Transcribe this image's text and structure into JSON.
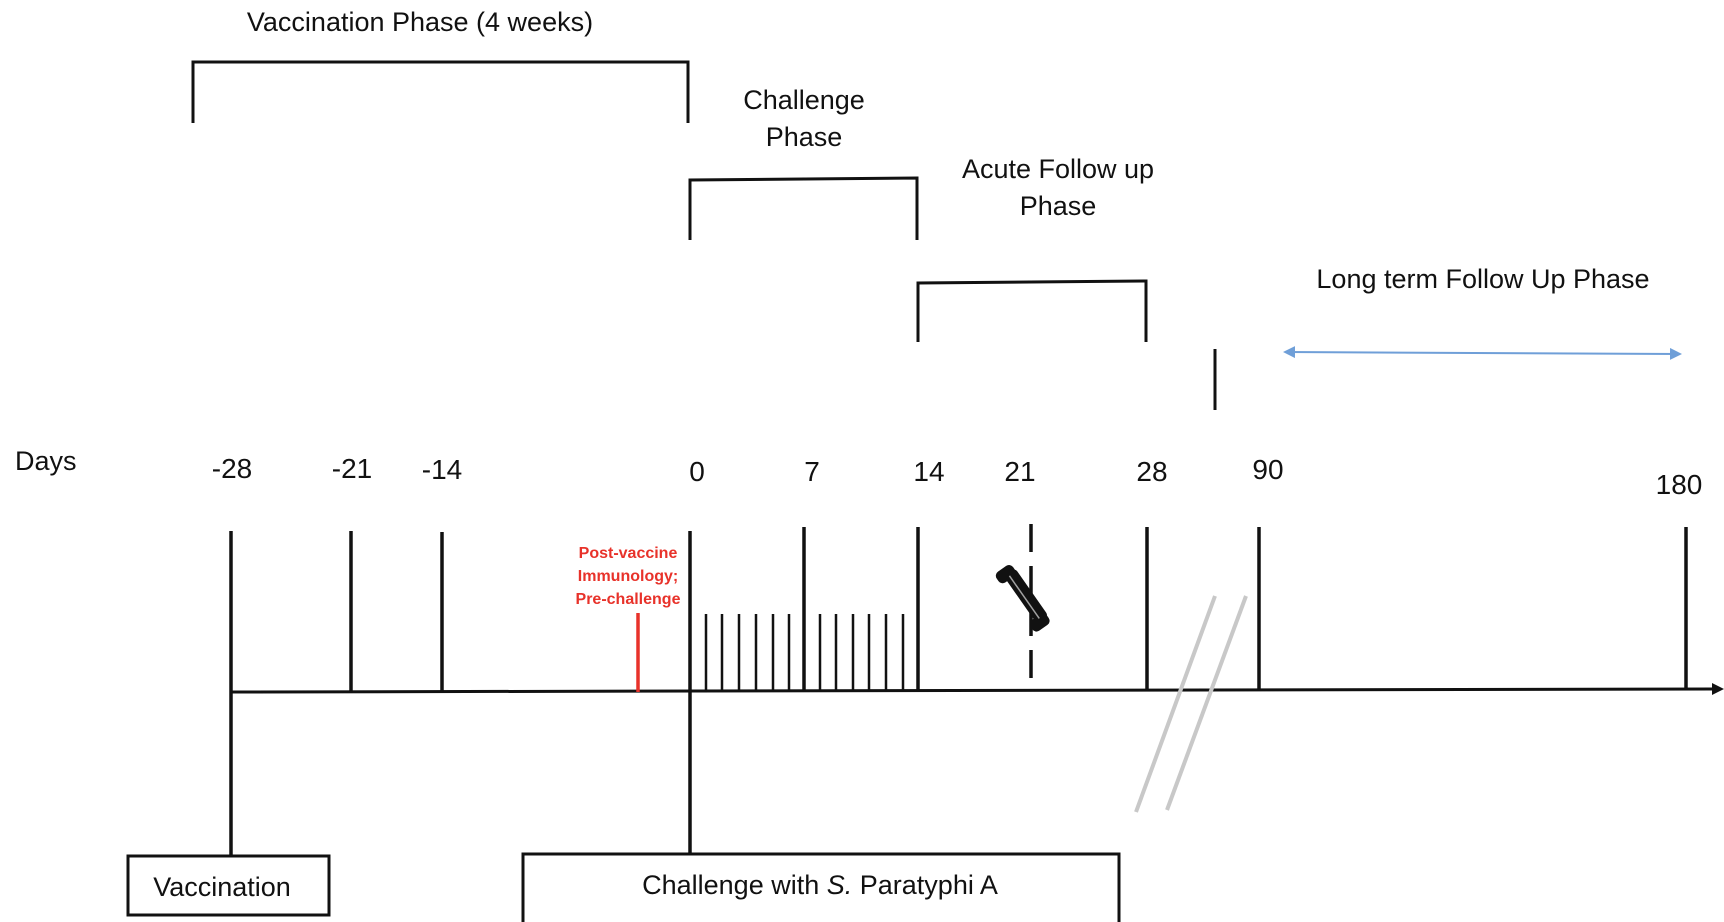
{
  "phases": {
    "vaccination": "Vaccination Phase (4 weeks)",
    "challenge_line1": "Challenge",
    "challenge_line2": "Phase",
    "acute_line1": "Acute Follow up",
    "acute_line2": "Phase",
    "long_term": "Long term Follow Up Phase"
  },
  "axis": {
    "title": "Days",
    "days": [
      "-28",
      "-21",
      "-14",
      "0",
      "7",
      "14",
      "21",
      "28",
      "90",
      "180"
    ]
  },
  "annotation": {
    "line1": "Post-vaccine",
    "line2": "Immunology;",
    "line3": "Pre-challenge"
  },
  "boxes": {
    "vaccination": "Vaccination",
    "challenge_prefix": "Challenge with ",
    "challenge_italic": "S.",
    "challenge_suffix": " Paratyphi A"
  },
  "icons": {
    "phone": "phone-icon"
  },
  "colors": {
    "annotation": "#e8322a",
    "long_term_arrow": "#6f9fd8",
    "axis_break": "#c8c8c8",
    "line": "#111111"
  }
}
